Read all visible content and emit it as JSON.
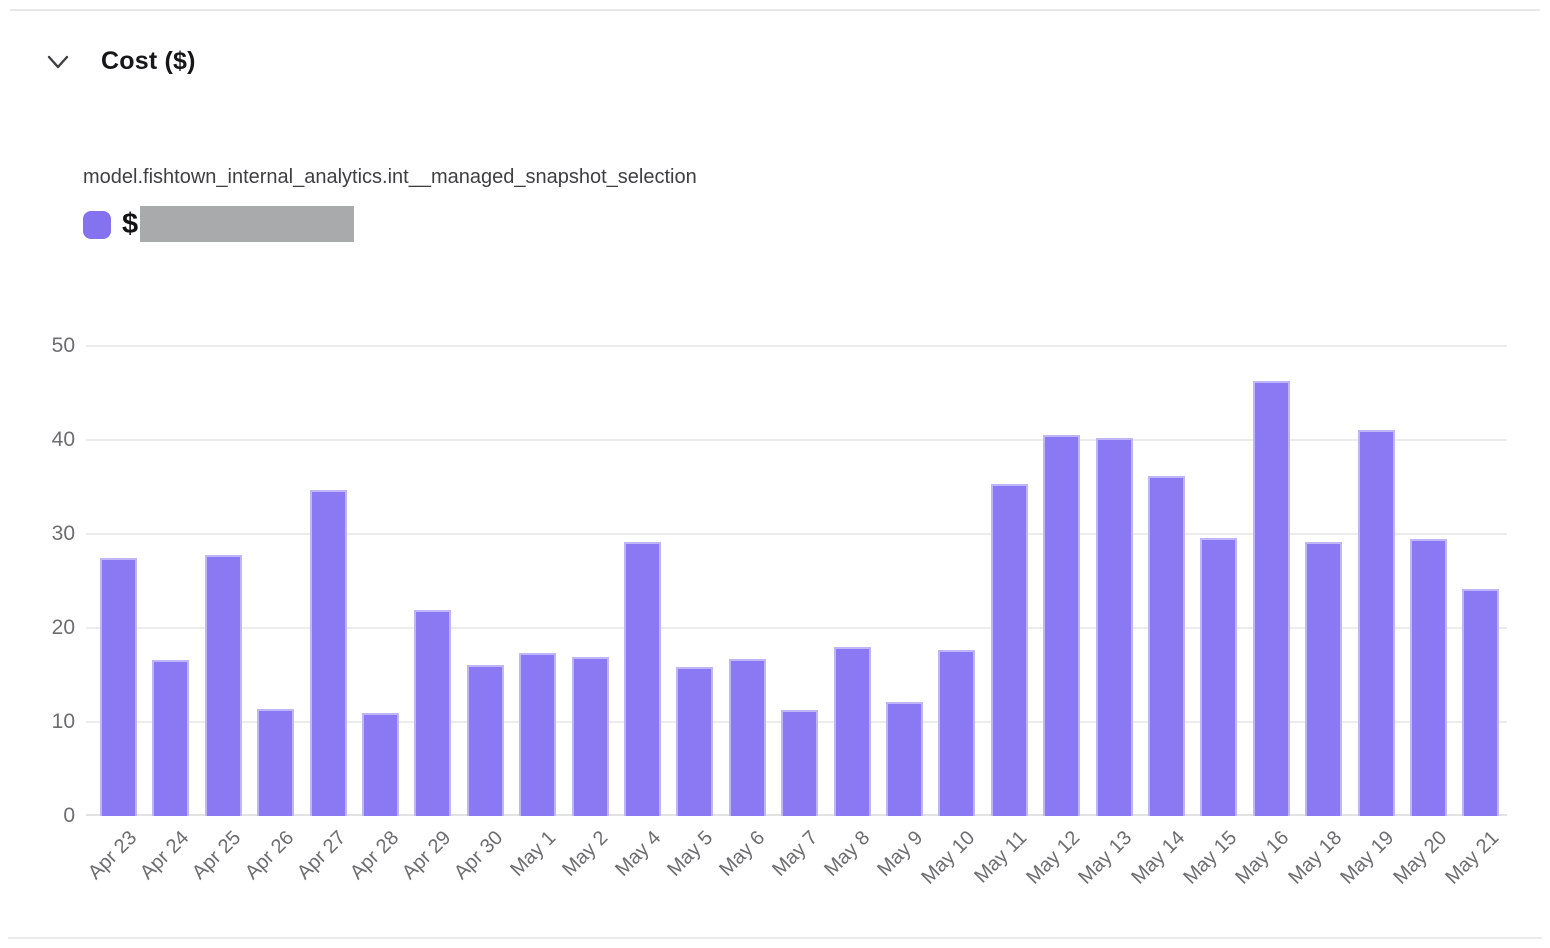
{
  "panel": {
    "title": "Cost ($)"
  },
  "legend": {
    "currency_prefix": "$",
    "value_redacted": true
  },
  "chart_data": {
    "type": "bar",
    "title": "Cost ($)",
    "series_name": "model.fishtown_internal_analytics.int__managed_snapshot_selection",
    "categories": [
      "Apr 23",
      "Apr 24",
      "Apr 25",
      "Apr 26",
      "Apr 27",
      "Apr 28",
      "Apr 29",
      "Apr 30",
      "May 1",
      "May 2",
      "May 4",
      "May 5",
      "May 6",
      "May 7",
      "May 8",
      "May 9",
      "May 10",
      "May 11",
      "May 12",
      "May 13",
      "May 14",
      "May 15",
      "May 16",
      "May 18",
      "May 19",
      "May 20",
      "May 21"
    ],
    "values": [
      27.4,
      16.6,
      27.8,
      11.4,
      34.7,
      11.0,
      21.9,
      16.1,
      17.3,
      16.9,
      29.1,
      15.9,
      16.7,
      11.3,
      18.0,
      12.1,
      17.7,
      35.3,
      40.5,
      40.2,
      36.2,
      29.6,
      46.3,
      29.1,
      41.1,
      29.5,
      24.2
    ],
    "xlabel": "",
    "ylabel": "",
    "ylim": [
      0,
      50
    ],
    "yticks": [
      0,
      10,
      20,
      30,
      40,
      50
    ],
    "grid": true,
    "legend_position": "top-left",
    "bar_color": "#8b79f4"
  },
  "colors": {
    "bar": "#8b79f4",
    "bar_edge": "rgba(255,255,255,0.45)",
    "legend_swatch": "#8472f1",
    "redaction": "#a9aaab",
    "gridline": "#ececec",
    "axis_text": "#6d6d70",
    "title_text": "#17171a",
    "series_label_text": "#3f3f42",
    "divider": "#e8e8e8"
  }
}
